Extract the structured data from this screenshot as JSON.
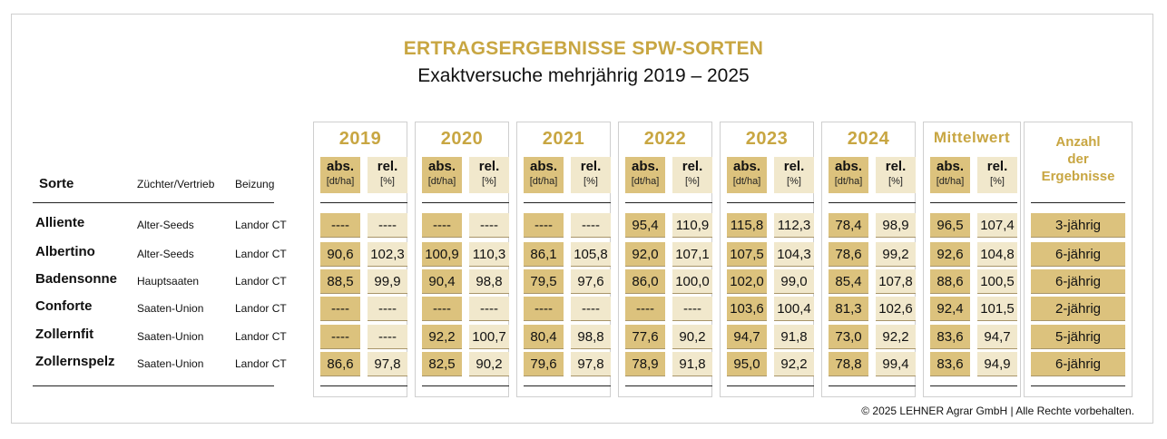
{
  "title": "ERTRAGSERGEBNISSE SPW-SORTEN",
  "subtitle": "Exaktversuche mehrjährig 2019 – 2025",
  "columns": {
    "sorte": "Sorte",
    "zuechter": "Züchter/Vertrieb",
    "beizung": "Beizung",
    "abs": "abs.",
    "abs_unit": "[dt/ha]",
    "rel": "rel.",
    "rel_unit": "[%]",
    "anzahl": [
      "Anzahl",
      "der",
      "Ergebnisse"
    ]
  },
  "years": [
    "2019",
    "2020",
    "2021",
    "2022",
    "2023",
    "2024",
    "Mittelwert"
  ],
  "rows": [
    {
      "sorte": "Alliente",
      "zuechter": "Alter-Seeds",
      "beizung": "Landor CT",
      "values": [
        [
          "----",
          "----"
        ],
        [
          "----",
          "----"
        ],
        [
          "----",
          "----"
        ],
        [
          "95,4",
          "110,9"
        ],
        [
          "115,8",
          "112,3"
        ],
        [
          "78,4",
          "98,9"
        ],
        [
          "96,5",
          "107,4"
        ]
      ],
      "anzahl": "3-jährig"
    },
    {
      "sorte": "Albertino",
      "zuechter": "Alter-Seeds",
      "beizung": "Landor CT",
      "values": [
        [
          "90,6",
          "102,3"
        ],
        [
          "100,9",
          "110,3"
        ],
        [
          "86,1",
          "105,8"
        ],
        [
          "92,0",
          "107,1"
        ],
        [
          "107,5",
          "104,3"
        ],
        [
          "78,6",
          "99,2"
        ],
        [
          "92,6",
          "104,8"
        ]
      ],
      "anzahl": "6-jährig"
    },
    {
      "sorte": "Badensonne",
      "zuechter": "Hauptsaaten",
      "beizung": "Landor CT",
      "values": [
        [
          "88,5",
          "99,9"
        ],
        [
          "90,4",
          "98,8"
        ],
        [
          "79,5",
          "97,6"
        ],
        [
          "86,0",
          "100,0"
        ],
        [
          "102,0",
          "99,0"
        ],
        [
          "85,4",
          "107,8"
        ],
        [
          "88,6",
          "100,5"
        ]
      ],
      "anzahl": "6-jährig"
    },
    {
      "sorte": "Conforte",
      "zuechter": "Saaten-Union",
      "beizung": "Landor CT",
      "values": [
        [
          "----",
          "----"
        ],
        [
          "----",
          "----"
        ],
        [
          "----",
          "----"
        ],
        [
          "----",
          "----"
        ],
        [
          "103,6",
          "100,4"
        ],
        [
          "81,3",
          "102,6"
        ],
        [
          "92,4",
          "101,5"
        ]
      ],
      "anzahl": "2-jährig"
    },
    {
      "sorte": "Zollernfit",
      "zuechter": "Saaten-Union",
      "beizung": "Landor CT",
      "values": [
        [
          "----",
          "----"
        ],
        [
          "92,2",
          "100,7"
        ],
        [
          "80,4",
          "98,8"
        ],
        [
          "77,6",
          "90,2"
        ],
        [
          "94,7",
          "91,8"
        ],
        [
          "73,0",
          "92,2"
        ],
        [
          "83,6",
          "94,7"
        ]
      ],
      "anzahl": "5-jährig"
    },
    {
      "sorte": "Zollernspelz",
      "zuechter": "Saaten-Union",
      "beizung": "Landor CT",
      "values": [
        [
          "86,6",
          "97,8"
        ],
        [
          "82,5",
          "90,2"
        ],
        [
          "79,6",
          "97,8"
        ],
        [
          "78,9",
          "91,8"
        ],
        [
          "95,0",
          "92,2"
        ],
        [
          "78,8",
          "99,4"
        ],
        [
          "83,6",
          "94,9"
        ]
      ],
      "anzahl": "6-jährig"
    }
  ],
  "footer": "© 2025 LEHNER Agrar GmbH  |  Alle Rechte vorbehalten.",
  "colors": {
    "gold": "#c8a642",
    "dark_cell": "#dcc27d",
    "light_cell": "#f1e8cc"
  }
}
